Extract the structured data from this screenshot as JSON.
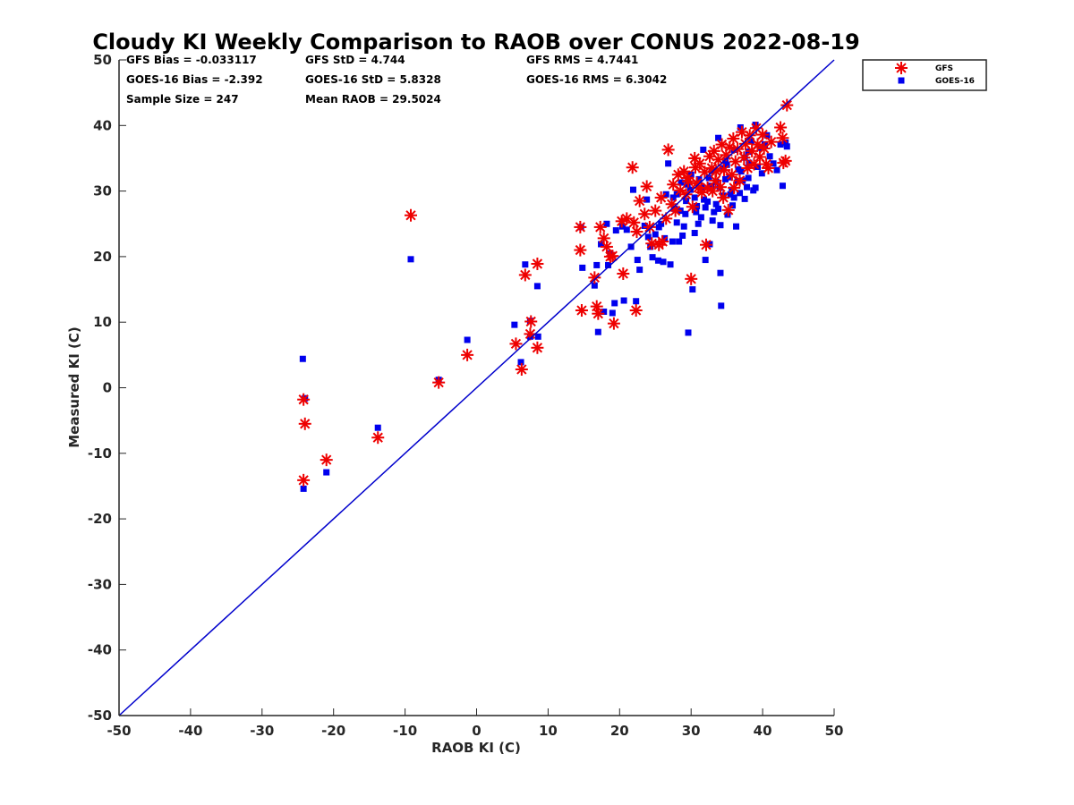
{
  "chart_data": {
    "type": "scatter",
    "title": "Cloudy KI Weekly Comparison to RAOB over CONUS 2022-08-19",
    "xlabel": "RAOB KI (C)",
    "ylabel": "Measured KI (C)",
    "xlim": [
      -50,
      50
    ],
    "ylim": [
      -50,
      50
    ],
    "xticks": [
      "-50",
      "-40",
      "-30",
      "-20",
      "-10",
      "0",
      "10",
      "20",
      "30",
      "40",
      "50"
    ],
    "yticks": [
      "-50",
      "-40",
      "-30",
      "-20",
      "-10",
      "0",
      "10",
      "20",
      "30",
      "40",
      "50"
    ],
    "grid": false,
    "legend_position": "top-right, outside axes",
    "reference_line": {
      "type": "1:1",
      "color": "#0000cc"
    },
    "stats": [
      [
        "GFS Bias = -0.033117",
        "GFS StD = 4.744",
        "GFS RMS = 4.7441"
      ],
      [
        "GOES-16 Bias = -2.392",
        "GOES-16 StD = 5.8328",
        "GOES-16 RMS = 6.3042"
      ],
      [
        "Sample Size = 247",
        "Mean RAOB = 29.5024",
        ""
      ]
    ],
    "series": [
      {
        "name": "GFS",
        "marker": "asterisk",
        "color": "#ee0000",
        "points": [
          [
            -24.2,
            -1.8
          ],
          [
            -24,
            -5.5
          ],
          [
            -24.2,
            -14.1
          ],
          [
            -21,
            -11
          ],
          [
            -13.8,
            -7.6
          ],
          [
            -9.2,
            26.3
          ],
          [
            -5.3,
            0.8
          ],
          [
            -1.3,
            5
          ],
          [
            5.5,
            6.7
          ],
          [
            6.3,
            2.8
          ],
          [
            6.8,
            17.2
          ],
          [
            7.5,
            8.2
          ],
          [
            7.6,
            10.1
          ],
          [
            8.5,
            18.9
          ],
          [
            8.5,
            6.1
          ],
          [
            14.5,
            24.5
          ],
          [
            14.5,
            21
          ],
          [
            14.7,
            11.8
          ],
          [
            16.5,
            16.8
          ],
          [
            16.8,
            12.4
          ],
          [
            17,
            11.3
          ],
          [
            17.3,
            24.5
          ],
          [
            17.8,
            22.8
          ],
          [
            18.2,
            21.5
          ],
          [
            18.7,
            20
          ],
          [
            19.2,
            9.8
          ],
          [
            19,
            20.1
          ],
          [
            20.5,
            17.4
          ],
          [
            20.3,
            25.4
          ],
          [
            21,
            25.8
          ],
          [
            21.8,
            33.6
          ],
          [
            22,
            25.2
          ],
          [
            22.3,
            11.8
          ],
          [
            22.4,
            23.8
          ],
          [
            22.8,
            28.5
          ],
          [
            23.5,
            26.5
          ],
          [
            23.8,
            30.7
          ],
          [
            24.2,
            24.5
          ],
          [
            24.5,
            22
          ],
          [
            25,
            27
          ],
          [
            25.5,
            21.8
          ],
          [
            25.8,
            29
          ],
          [
            26,
            22.3
          ],
          [
            26.5,
            25.8
          ],
          [
            26.8,
            36.3
          ],
          [
            27.3,
            28
          ],
          [
            27.5,
            31
          ],
          [
            27.8,
            27
          ],
          [
            28.2,
            32.5
          ],
          [
            28.5,
            30.1
          ],
          [
            29,
            33
          ],
          [
            29.3,
            29.5
          ],
          [
            29.6,
            31.5
          ],
          [
            30,
            16.6
          ],
          [
            30.2,
            27.6
          ],
          [
            30.6,
            33.6
          ],
          [
            30.8,
            31.2
          ],
          [
            31.2,
            34.2
          ],
          [
            31.5,
            29.8
          ],
          [
            31.9,
            32.9
          ],
          [
            32.1,
            21.8
          ],
          [
            32.3,
            30.5
          ],
          [
            32.6,
            35.3
          ],
          [
            32.9,
            33.5
          ],
          [
            33.2,
            36.1
          ],
          [
            33.4,
            31.6
          ],
          [
            33.8,
            34.8
          ],
          [
            34.1,
            30.6
          ],
          [
            34.3,
            37.1
          ],
          [
            34.6,
            33.2
          ],
          [
            34.9,
            35.5
          ],
          [
            35.2,
            27.1
          ],
          [
            35.4,
            36.7
          ],
          [
            35.7,
            32.5
          ],
          [
            35.9,
            38
          ],
          [
            36.2,
            34.5
          ],
          [
            36.5,
            36.4
          ],
          [
            36.8,
            31.6
          ],
          [
            37.1,
            39
          ],
          [
            37.4,
            35.1
          ],
          [
            37.6,
            37.2
          ],
          [
            37.9,
            33.5
          ],
          [
            38.2,
            38.5
          ],
          [
            38.5,
            36.1
          ],
          [
            38.8,
            34.1
          ],
          [
            39.1,
            39.6
          ],
          [
            39.3,
            37.1
          ],
          [
            39.6,
            35.2
          ],
          [
            40,
            38.6
          ],
          [
            40.2,
            36.5
          ],
          [
            40.5,
            34.1
          ],
          [
            40.8,
            33.5
          ],
          [
            41.2,
            37.5
          ],
          [
            42.5,
            39.7
          ],
          [
            42.8,
            38.1
          ],
          [
            42.9,
            34.3
          ],
          [
            43.2,
            34.6
          ],
          [
            43.4,
            43.1
          ],
          [
            33,
            30
          ],
          [
            34.5,
            29
          ],
          [
            36,
            30.5
          ],
          [
            31,
            30.5
          ],
          [
            29.5,
            32
          ],
          [
            30.5,
            35
          ],
          [
            33.5,
            33
          ]
        ]
      },
      {
        "name": "GOES-16",
        "marker": "square",
        "color": "#0000ee",
        "points": [
          [
            -24.3,
            4.4
          ],
          [
            -24,
            -1.6
          ],
          [
            -24.2,
            -15.4
          ],
          [
            -21,
            -12.9
          ],
          [
            -13.8,
            -6.1
          ],
          [
            -9.2,
            19.6
          ],
          [
            -5.3,
            1.2
          ],
          [
            -1.3,
            7.3
          ],
          [
            5.3,
            9.6
          ],
          [
            6.2,
            3.9
          ],
          [
            6.8,
            18.8
          ],
          [
            7.5,
            10.2
          ],
          [
            7.5,
            7.8
          ],
          [
            8.5,
            15.5
          ],
          [
            8.6,
            7.8
          ],
          [
            14.6,
            24.5
          ],
          [
            14.8,
            18.3
          ],
          [
            16.5,
            15.6
          ],
          [
            16.8,
            18.7
          ],
          [
            17,
            8.5
          ],
          [
            17.4,
            21.9
          ],
          [
            17.8,
            11.6
          ],
          [
            18.2,
            25
          ],
          [
            18.4,
            18.7
          ],
          [
            18.7,
            20.5
          ],
          [
            19,
            11.4
          ],
          [
            19.3,
            12.9
          ],
          [
            19.5,
            24
          ],
          [
            20.4,
            24.6
          ],
          [
            20.6,
            13.3
          ],
          [
            21,
            24.1
          ],
          [
            21.6,
            21.5
          ],
          [
            21.9,
            30.2
          ],
          [
            22.3,
            13.2
          ],
          [
            22.5,
            19.5
          ],
          [
            22.8,
            18
          ],
          [
            23.5,
            24.7
          ],
          [
            23.8,
            28.7
          ],
          [
            24.3,
            21.5
          ],
          [
            24.6,
            19.9
          ],
          [
            25,
            23.4
          ],
          [
            25.4,
            19.4
          ],
          [
            25.8,
            25
          ],
          [
            26.1,
            19.2
          ],
          [
            26.5,
            29.5
          ],
          [
            26.8,
            34.2
          ],
          [
            27.1,
            18.8
          ],
          [
            27.4,
            22.3
          ],
          [
            27.7,
            27.3
          ],
          [
            28,
            25.2
          ],
          [
            28.3,
            22.3
          ],
          [
            28.6,
            31.3
          ],
          [
            29,
            24.6
          ],
          [
            29.3,
            28.5
          ],
          [
            29.6,
            8.4
          ],
          [
            29.9,
            30.2
          ],
          [
            30.2,
            15
          ],
          [
            30.5,
            23.6
          ],
          [
            30.8,
            27.7
          ],
          [
            31.1,
            31.8
          ],
          [
            31.4,
            26
          ],
          [
            31.7,
            36.3
          ],
          [
            32,
            19.5
          ],
          [
            32.3,
            28.4
          ],
          [
            32.6,
            21.9
          ],
          [
            32.9,
            33.1
          ],
          [
            33.2,
            26.8
          ],
          [
            33.5,
            31.4
          ],
          [
            33.8,
            38.1
          ],
          [
            34.1,
            24.8
          ],
          [
            34.1,
            17.5
          ],
          [
            34.2,
            12.5
          ],
          [
            34.5,
            29.3
          ],
          [
            34.8,
            34.6
          ],
          [
            35.1,
            26.4
          ],
          [
            35.4,
            32.1
          ],
          [
            35.7,
            30.2
          ],
          [
            36,
            36.3
          ],
          [
            36.3,
            24.6
          ],
          [
            36.6,
            33.3
          ],
          [
            36.9,
            39.7
          ],
          [
            37.2,
            31.6
          ],
          [
            37.5,
            35.1
          ],
          [
            37.8,
            30.6
          ],
          [
            38.1,
            34.3
          ],
          [
            38.4,
            37.6
          ],
          [
            38.7,
            30.1
          ],
          [
            39,
            40.1
          ],
          [
            39.3,
            33.7
          ],
          [
            39.6,
            36.6
          ],
          [
            39.9,
            32.7
          ],
          [
            40.3,
            37.1
          ],
          [
            40.6,
            38.5
          ],
          [
            41,
            35.3
          ],
          [
            41.5,
            34.2
          ],
          [
            42,
            33.2
          ],
          [
            42.5,
            37.1
          ],
          [
            42.8,
            30.8
          ],
          [
            43.2,
            37.4
          ],
          [
            43.4,
            36.8
          ],
          [
            28.5,
            27
          ],
          [
            29.2,
            26.5
          ],
          [
            30.5,
            29
          ],
          [
            31.5,
            30.5
          ],
          [
            32.5,
            32
          ],
          [
            33.5,
            28
          ],
          [
            34.5,
            33.5
          ],
          [
            35.5,
            29.5
          ],
          [
            36.5,
            31.5
          ],
          [
            37.5,
            28.8
          ],
          [
            30,
            32.5
          ],
          [
            31,
            25
          ],
          [
            32,
            27.5
          ],
          [
            33,
            25.5
          ],
          [
            34,
            30.5
          ],
          [
            35,
            34
          ],
          [
            36,
            29
          ],
          [
            37,
            33
          ],
          [
            38,
            32
          ],
          [
            39,
            30.5
          ],
          [
            28,
            29.5
          ],
          [
            29.5,
            31
          ],
          [
            30.7,
            26.8
          ],
          [
            31.8,
            28.7
          ],
          [
            32.8,
            30.8
          ],
          [
            33.8,
            27.3
          ],
          [
            34.8,
            31.8
          ],
          [
            35.8,
            27.8
          ],
          [
            36.8,
            29.7
          ],
          [
            38,
            36
          ],
          [
            27.5,
            29
          ],
          [
            28.8,
            23.2
          ],
          [
            26.3,
            22.8
          ],
          [
            25.5,
            24.5
          ],
          [
            24,
            23
          ]
        ]
      }
    ]
  }
}
